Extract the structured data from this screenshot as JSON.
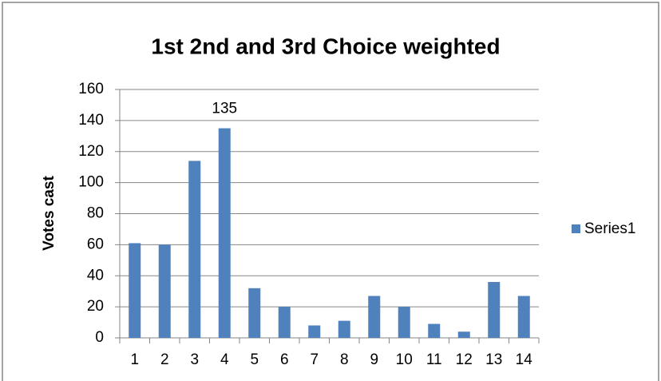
{
  "chart_data": {
    "type": "bar",
    "title": "1st 2nd and 3rd Choice weighted",
    "y_label": "Votes cast",
    "categories": [
      "1",
      "2",
      "3",
      "4",
      "5",
      "6",
      "7",
      "8",
      "9",
      "10",
      "11",
      "12",
      "13",
      "14"
    ],
    "series": [
      {
        "name": "Series1",
        "color": "#4f81bd",
        "values": [
          61,
          60,
          114,
          135,
          32,
          20,
          8,
          11,
          27,
          20,
          9,
          4,
          36,
          27
        ]
      }
    ],
    "value_labels": [
      null,
      null,
      null,
      "135",
      null,
      null,
      null,
      null,
      null,
      null,
      null,
      null,
      null,
      null
    ],
    "ylim": [
      0,
      160
    ],
    "yticks": [
      0,
      20,
      40,
      60,
      80,
      100,
      120,
      140,
      160
    ],
    "grid": true,
    "legend": "right"
  }
}
